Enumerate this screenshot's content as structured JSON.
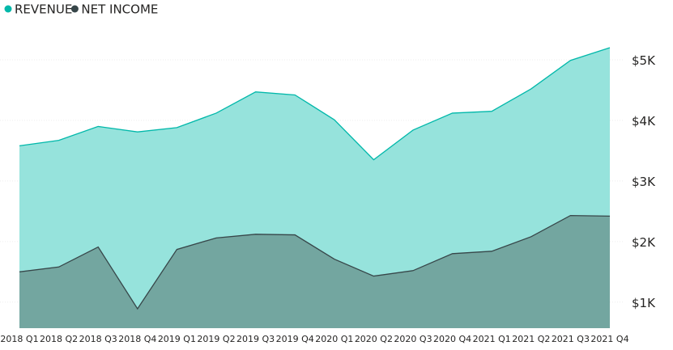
{
  "chart_data": {
    "type": "area",
    "categories": [
      "2018 Q1",
      "2018 Q2",
      "2018 Q3",
      "2018 Q4",
      "2019 Q1",
      "2019 Q2",
      "2019 Q3",
      "2019 Q4",
      "2020 Q1",
      "2020 Q2",
      "2020 Q3",
      "2020 Q4",
      "2021 Q1",
      "2021 Q2",
      "2021 Q3",
      "2021 Q4"
    ],
    "series": [
      {
        "name": "REVENUE",
        "color": "#01B8AA",
        "fill": "#96E3DC",
        "values": [
          3580,
          3670,
          3900,
          3810,
          3880,
          4120,
          4470,
          4420,
          4010,
          3350,
          3840,
          4120,
          4150,
          4520,
          4990,
          5200
        ]
      },
      {
        "name": "NET INCOME",
        "color": "#374649",
        "fill": "#73A6A0",
        "values": [
          1500,
          1580,
          1910,
          890,
          1870,
          2060,
          2120,
          2110,
          1710,
          1430,
          1520,
          1800,
          1840,
          2080,
          2430,
          2420
        ]
      }
    ],
    "yticks": [
      1000,
      2000,
      3000,
      4000,
      5000
    ],
    "ytick_labels": [
      "$1K",
      "$2K",
      "$3K",
      "$4K",
      "$5K"
    ],
    "ylim": [
      570,
      5400
    ],
    "grid": true,
    "legend": "top-left",
    "xlabel": "",
    "ylabel": ""
  }
}
